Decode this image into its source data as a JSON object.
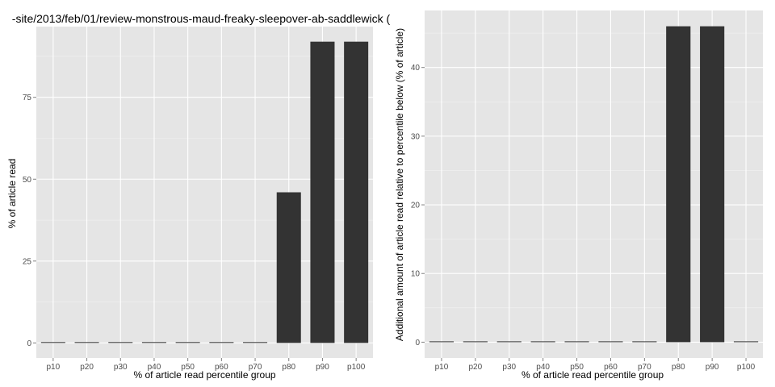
{
  "chart_data": [
    {
      "type": "bar",
      "title": "-site/2013/feb/01/review-monstrous-maud-freaky-sleepover-ab-saddlewick (",
      "xlabel": "% of article read percentile group",
      "ylabel": "% of article read",
      "categories": [
        "p10",
        "p20",
        "p30",
        "p40",
        "p50",
        "p60",
        "p70",
        "p80",
        "p90",
        "p100"
      ],
      "values": [
        0,
        0,
        0,
        0,
        0,
        0,
        0,
        46,
        92,
        92
      ],
      "ylim": [
        -4.6,
        96.6
      ],
      "yticks": [
        0,
        25,
        50,
        75
      ],
      "grid": true
    },
    {
      "type": "bar",
      "title": "",
      "xlabel": "% of article read percentile group",
      "ylabel": "Additional amount of article read relative to percentile below (% of article)",
      "categories": [
        "p10",
        "p20",
        "p30",
        "p40",
        "p50",
        "p60",
        "p70",
        "p80",
        "p90",
        "p100"
      ],
      "values": [
        0,
        0,
        0,
        0,
        0,
        0,
        0,
        46,
        46,
        0
      ],
      "ylim": [
        -2.3,
        48.3
      ],
      "yticks": [
        0,
        10,
        20,
        30,
        40
      ],
      "grid": true
    }
  ],
  "colors": {
    "panel_background": "#e5e5e5",
    "major_grid": "#ffffff",
    "minor_grid": "#f2f2f2",
    "bar_fill": "#333333",
    "tick_text": "#4d4d4d",
    "tick_mark": "#7f7f7f"
  }
}
